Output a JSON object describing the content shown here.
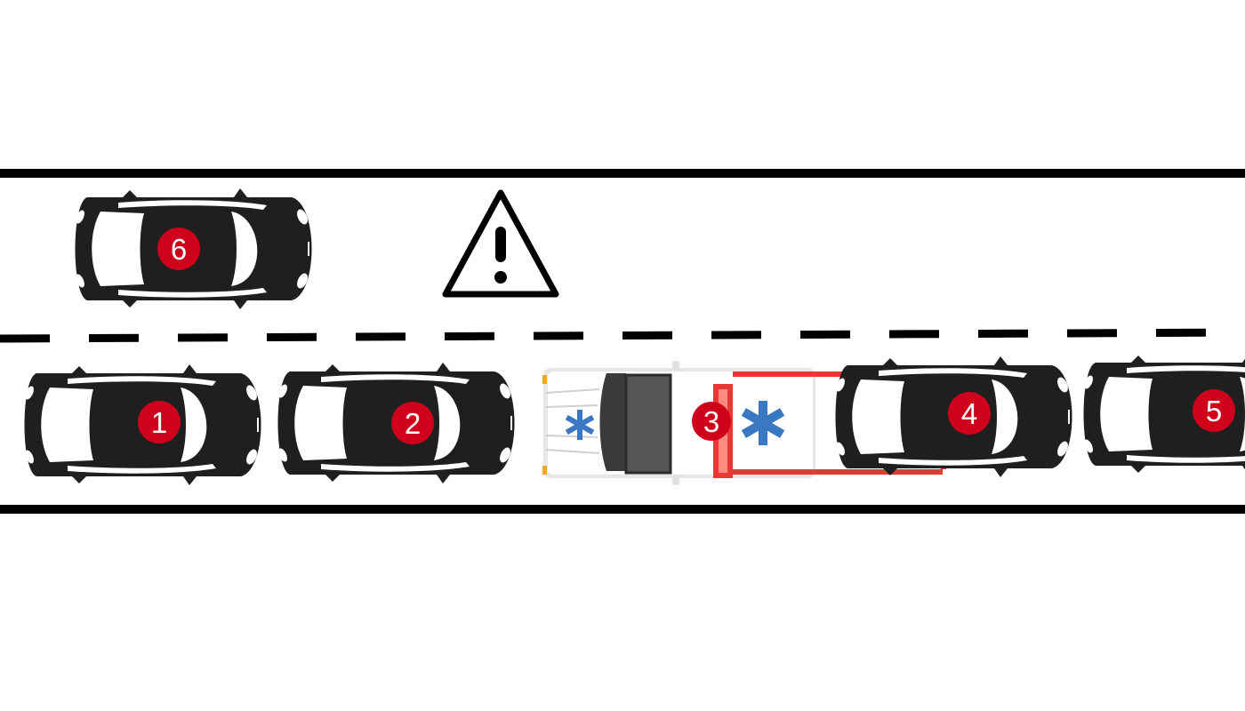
{
  "vehicles": [
    {
      "id": "car-6",
      "label": "6",
      "kind": "car",
      "lane": "upper"
    },
    {
      "id": "car-1",
      "label": "1",
      "kind": "car",
      "lane": "lower"
    },
    {
      "id": "car-2",
      "label": "2",
      "kind": "car",
      "lane": "lower"
    },
    {
      "id": "ambulance-3",
      "label": "3",
      "kind": "ambulance",
      "lane": "lower"
    },
    {
      "id": "car-4",
      "label": "4",
      "kind": "car",
      "lane": "lower"
    },
    {
      "id": "car-5",
      "label": "5",
      "kind": "car",
      "lane": "lower"
    }
  ],
  "hazard": {
    "icon": "warning-triangle-icon"
  },
  "colors": {
    "road_line": "#000000",
    "car_body": "#1f1f1f",
    "badge": "#d0021b",
    "ambulance_stripe": "#e53935",
    "ambulance_star": "#3b78c3"
  }
}
